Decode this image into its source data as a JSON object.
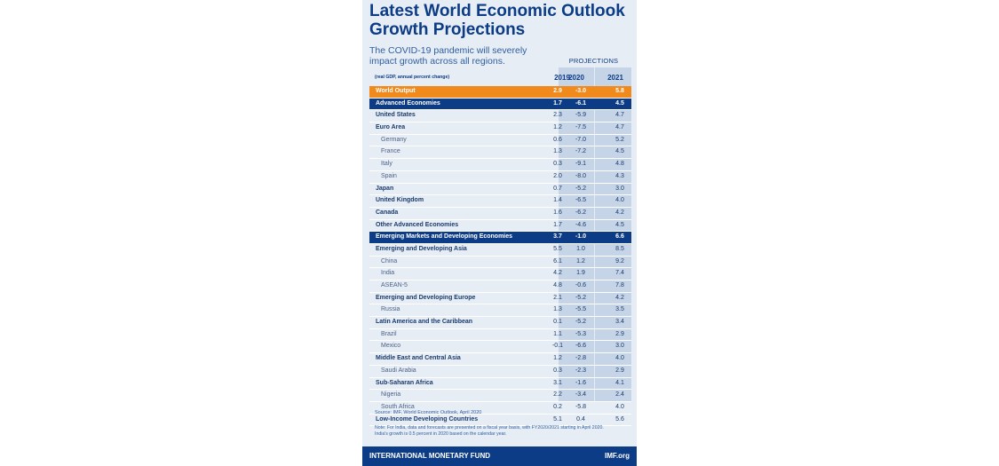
{
  "title": "Latest World Economic Outlook Growth Projections",
  "subtitle": "The COVID-19 pandemic will severely impact growth across all regions.",
  "projections_label": "PROJECTIONS",
  "unit_note": "(real GDP, annual percent change)",
  "columns": [
    "2019",
    "2020",
    "2021"
  ],
  "colors": {
    "navy": "#0c3c86",
    "orange": "#f08a1c",
    "shade": "#c5d4e6",
    "panel": "#e7edf4"
  },
  "rows": [
    {
      "label": "World Output",
      "values": [
        "2.9",
        "-3.0",
        "5.8"
      ]
    },
    {
      "label": "Advanced Economies",
      "values": [
        "1.7",
        "-6.1",
        "4.5"
      ]
    },
    {
      "label": "United States",
      "values": [
        "2.3",
        "-5.9",
        "4.7"
      ]
    },
    {
      "label": "Euro Area",
      "values": [
        "1.2",
        "-7.5",
        "4.7"
      ]
    },
    {
      "label": "Germany",
      "values": [
        "0.6",
        "-7.0",
        "5.2"
      ]
    },
    {
      "label": "France",
      "values": [
        "1.3",
        "-7.2",
        "4.5"
      ]
    },
    {
      "label": "Italy",
      "values": [
        "0.3",
        "-9.1",
        "4.8"
      ]
    },
    {
      "label": "Spain",
      "values": [
        "2.0",
        "-8.0",
        "4.3"
      ]
    },
    {
      "label": "Japan",
      "values": [
        "0.7",
        "-5.2",
        "3.0"
      ]
    },
    {
      "label": "United Kingdom",
      "values": [
        "1.4",
        "-6.5",
        "4.0"
      ]
    },
    {
      "label": "Canada",
      "values": [
        "1.6",
        "-6.2",
        "4.2"
      ]
    },
    {
      "label": "Other Advanced Economies",
      "values": [
        "1.7",
        "-4.6",
        "4.5"
      ]
    },
    {
      "label": "Emerging Markets and Developing Economies",
      "values": [
        "3.7",
        "-1.0",
        "6.6"
      ]
    },
    {
      "label": "Emerging and Developing Asia",
      "values": [
        "5.5",
        "1.0",
        "8.5"
      ]
    },
    {
      "label": "China",
      "values": [
        "6.1",
        "1.2",
        "9.2"
      ]
    },
    {
      "label": "India",
      "values": [
        "4.2",
        "1.9",
        "7.4"
      ]
    },
    {
      "label": "ASEAN-5",
      "values": [
        "4.8",
        "-0.6",
        "7.8"
      ]
    },
    {
      "label": "Emerging and Developing Europe",
      "values": [
        "2.1",
        "-5.2",
        "4.2"
      ]
    },
    {
      "label": "Russia",
      "values": [
        "1.3",
        "-5.5",
        "3.5"
      ]
    },
    {
      "label": "Latin America and the Caribbean",
      "values": [
        "0.1",
        "-5.2",
        "3.4"
      ]
    },
    {
      "label": "Brazil",
      "values": [
        "1.1",
        "-5.3",
        "2.9"
      ]
    },
    {
      "label": "Mexico",
      "values": [
        "-0.1",
        "-6.6",
        "3.0"
      ]
    },
    {
      "label": "Middle East and Central Asia",
      "values": [
        "1.2",
        "-2.8",
        "4.0"
      ]
    },
    {
      "label": "Saudi Arabia",
      "values": [
        "0.3",
        "-2.3",
        "2.9"
      ]
    },
    {
      "label": "Sub-Saharan Africa",
      "values": [
        "3.1",
        "-1.6",
        "4.1"
      ]
    },
    {
      "label": "Nigeria",
      "values": [
        "2.2",
        "-3.4",
        "2.4"
      ]
    },
    {
      "label": "South Africa",
      "values": [
        "0.2",
        "-5.8",
        "4.0"
      ]
    },
    {
      "label": "Low-Income Developing Countries",
      "values": [
        "5.1",
        "0.4",
        "5.6"
      ]
    }
  ],
  "source": "Source: IMF, World Economic Outlook, April 2020",
  "note": "Note: For India, data and forecasts are presented on a fiscal year basis, with FY2020/2021 starting in April 2020. India's growth is 0.5 percent in 2020 based on the calendar year.",
  "footer": {
    "org": "INTERNATIONAL MONETARY FUND",
    "site": "IMF.org"
  }
}
